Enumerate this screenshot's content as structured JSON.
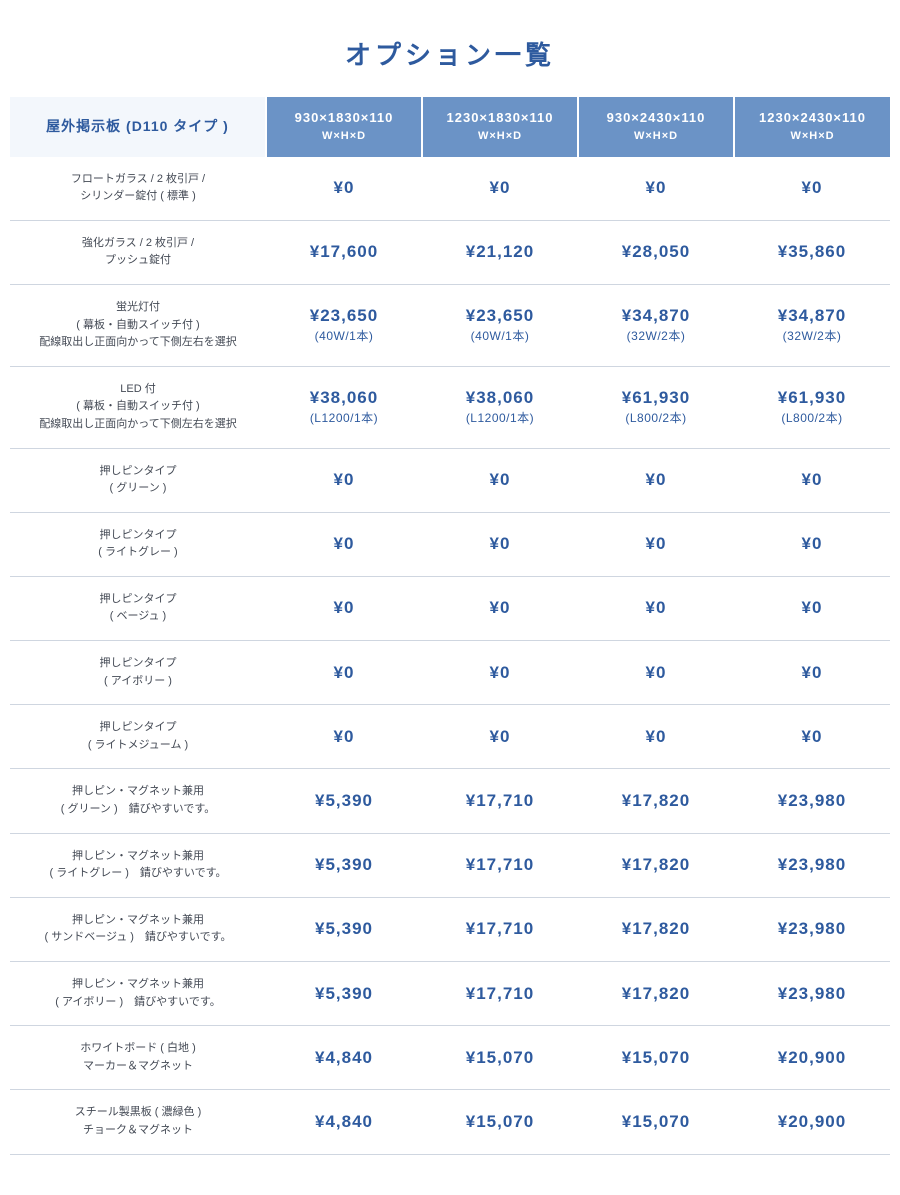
{
  "title": "オプション一覧",
  "header": {
    "row_label": "屋外掲示板 (D110 タイプ )",
    "whd": "W×H×D",
    "cols": [
      "930×1830×110",
      "1230×1830×110",
      "930×2430×110",
      "1230×2430×110"
    ]
  },
  "rows": [
    {
      "label": "フロートガラス / 2 枚引戸 /\nシリンダー錠付 ( 標準 )",
      "cells": [
        {
          "price": "¥0"
        },
        {
          "price": "¥0"
        },
        {
          "price": "¥0"
        },
        {
          "price": "¥0"
        }
      ]
    },
    {
      "label": "強化ガラス / 2 枚引戸 /\nプッシュ錠付",
      "cells": [
        {
          "price": "¥17,600"
        },
        {
          "price": "¥21,120"
        },
        {
          "price": "¥28,050"
        },
        {
          "price": "¥35,860"
        }
      ]
    },
    {
      "label": "蛍光灯付\n( 幕板・自動スイッチ付 )\n配線取出し正面向かって下側左右を選択",
      "cells": [
        {
          "price": "¥23,650",
          "sub": "(40W/1本)"
        },
        {
          "price": "¥23,650",
          "sub": "(40W/1本)"
        },
        {
          "price": "¥34,870",
          "sub": "(32W/2本)"
        },
        {
          "price": "¥34,870",
          "sub": "(32W/2本)"
        }
      ]
    },
    {
      "label": "LED 付\n( 幕板・自動スイッチ付 )\n配線取出し正面向かって下側左右を選択",
      "cells": [
        {
          "price": "¥38,060",
          "sub": "(L1200/1本)"
        },
        {
          "price": "¥38,060",
          "sub": "(L1200/1本)"
        },
        {
          "price": "¥61,930",
          "sub": "(L800/2本)"
        },
        {
          "price": "¥61,930",
          "sub": "(L800/2本)"
        }
      ]
    },
    {
      "label": "押しピンタイプ\n( グリーン )",
      "cells": [
        {
          "price": "¥0"
        },
        {
          "price": "¥0"
        },
        {
          "price": "¥0"
        },
        {
          "price": "¥0"
        }
      ]
    },
    {
      "label": "押しピンタイプ\n( ライトグレー )",
      "cells": [
        {
          "price": "¥0"
        },
        {
          "price": "¥0"
        },
        {
          "price": "¥0"
        },
        {
          "price": "¥0"
        }
      ]
    },
    {
      "label": "押しピンタイプ\n( ベージュ )",
      "cells": [
        {
          "price": "¥0"
        },
        {
          "price": "¥0"
        },
        {
          "price": "¥0"
        },
        {
          "price": "¥0"
        }
      ]
    },
    {
      "label": "押しピンタイプ\n( アイボリー )",
      "cells": [
        {
          "price": "¥0"
        },
        {
          "price": "¥0"
        },
        {
          "price": "¥0"
        },
        {
          "price": "¥0"
        }
      ]
    },
    {
      "label": "押しピンタイプ\n( ライトメジューム )",
      "cells": [
        {
          "price": "¥0"
        },
        {
          "price": "¥0"
        },
        {
          "price": "¥0"
        },
        {
          "price": "¥0"
        }
      ]
    },
    {
      "label": "押しピン・マグネット兼用\n( グリーン )　錆びやすいです。",
      "cells": [
        {
          "price": "¥5,390"
        },
        {
          "price": "¥17,710"
        },
        {
          "price": "¥17,820"
        },
        {
          "price": "¥23,980"
        }
      ]
    },
    {
      "label": "押しピン・マグネット兼用\n( ライトグレー )　錆びやすいです。",
      "cells": [
        {
          "price": "¥5,390"
        },
        {
          "price": "¥17,710"
        },
        {
          "price": "¥17,820"
        },
        {
          "price": "¥23,980"
        }
      ]
    },
    {
      "label": "押しピン・マグネット兼用\n( サンドベージュ )　錆びやすいです。",
      "cells": [
        {
          "price": "¥5,390"
        },
        {
          "price": "¥17,710"
        },
        {
          "price": "¥17,820"
        },
        {
          "price": "¥23,980"
        }
      ]
    },
    {
      "label": "押しピン・マグネット兼用\n( アイボリー )　錆びやすいです。",
      "cells": [
        {
          "price": "¥5,390"
        },
        {
          "price": "¥17,710"
        },
        {
          "price": "¥17,820"
        },
        {
          "price": "¥23,980"
        }
      ]
    },
    {
      "label": "ホワイトボード ( 白地 )\nマーカー＆マグネット",
      "cells": [
        {
          "price": "¥4,840"
        },
        {
          "price": "¥15,070"
        },
        {
          "price": "¥15,070"
        },
        {
          "price": "¥20,900"
        }
      ]
    },
    {
      "label": "スチール製黒板 ( 濃緑色 )\nチョーク＆マグネット",
      "cells": [
        {
          "price": "¥4,840"
        },
        {
          "price": "¥15,070"
        },
        {
          "price": "¥15,070"
        },
        {
          "price": "¥20,900"
        }
      ]
    }
  ],
  "style": {
    "title_color": "#2e5a9e",
    "header_bg": "#6b93c6",
    "header_corner_bg": "#f3f7fc",
    "border_color": "#cfd6e0",
    "price_color": "#2e5a9e",
    "label_color": "#444a55",
    "background": "#ffffff",
    "title_fontsize": 26,
    "price_fontsize": 17,
    "label_fontsize": 11
  }
}
